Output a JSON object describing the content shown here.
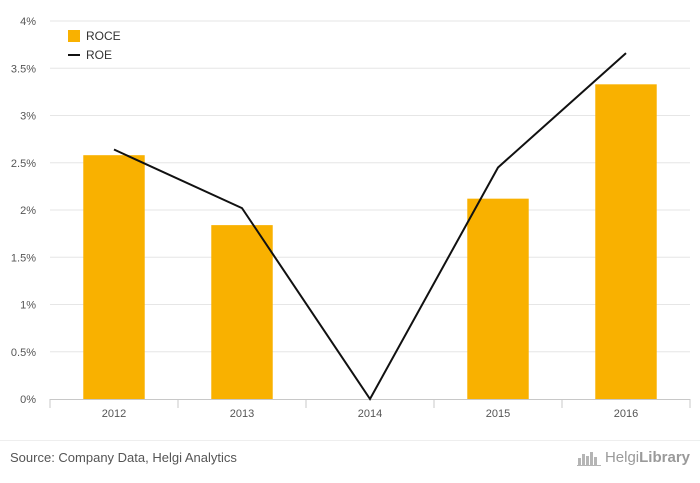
{
  "chart_data": {
    "type": "bar",
    "categories": [
      "2012",
      "2013",
      "2014",
      "2015",
      "2016"
    ],
    "series": [
      {
        "name": "ROCE",
        "type": "bar",
        "color": "#f9b100",
        "values": [
          2.58,
          1.84,
          0.0,
          2.12,
          3.33
        ]
      },
      {
        "name": "ROE",
        "type": "line",
        "color": "#111111",
        "values": [
          2.64,
          2.02,
          0.0,
          2.45,
          3.66
        ]
      }
    ],
    "ylim": [
      0,
      4
    ],
    "yticks": [
      "0%",
      "0.5%",
      "1%",
      "1.5%",
      "2%",
      "2.5%",
      "3%",
      "3.5%",
      "4%"
    ],
    "ytick_values": [
      0,
      0.5,
      1,
      1.5,
      2,
      2.5,
      3,
      3.5,
      4
    ],
    "grid": true,
    "legend_position": "top-left"
  },
  "footer": {
    "source": "Source: Company Data, Helgi Analytics",
    "brand_regular": "Helgi",
    "brand_bold": "Library",
    "brand_icon": "skyline-icon"
  }
}
